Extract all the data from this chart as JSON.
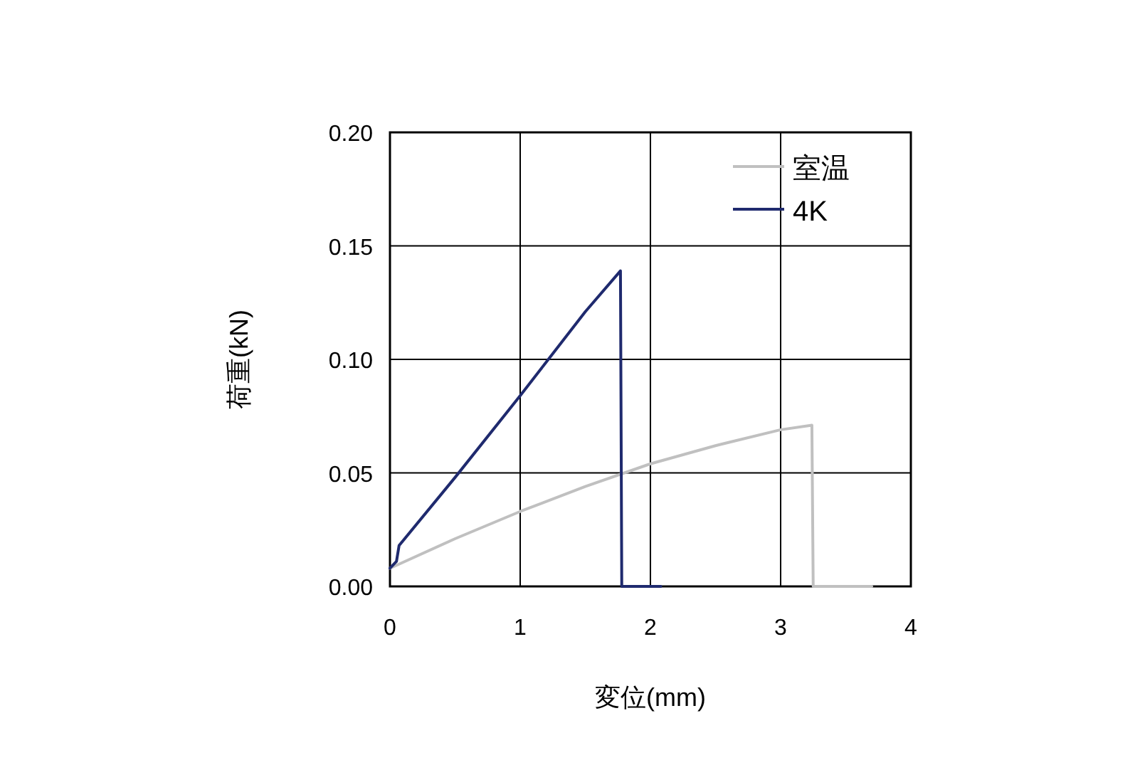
{
  "chart_data": {
    "type": "line",
    "xlabel": "変位(mm)",
    "ylabel": "荷重(kN)",
    "xlim": [
      0,
      4
    ],
    "ylim": [
      0,
      0.2
    ],
    "xticks": [
      0,
      1,
      2,
      3,
      4
    ],
    "yticks": [
      {
        "value": 0,
        "label": "0.00"
      },
      {
        "value": 0.05,
        "label": "0.05"
      },
      {
        "value": 0.1,
        "label": "0.10"
      },
      {
        "value": 0.15,
        "label": "0.15"
      },
      {
        "value": 0.2,
        "label": "0.20"
      }
    ],
    "grid": true,
    "legend": "top right",
    "marker": "none",
    "line_style": "solid",
    "series": [
      {
        "name": "室温",
        "color": "#c0c0c0",
        "x": [
          0,
          0.5,
          1,
          1.5,
          2,
          2.5,
          3,
          3.24,
          3.25,
          3.7
        ],
        "values": [
          0.008,
          0.021,
          0.033,
          0.044,
          0.054,
          0.062,
          0.069,
          0.071,
          0,
          0
        ]
      },
      {
        "name": "4K",
        "color": "#1f2a6e",
        "x": [
          0,
          0.05,
          0.07,
          0.5,
          1,
          1.5,
          1.77,
          1.78,
          2.08
        ],
        "values": [
          0.008,
          0.011,
          0.018,
          0.048,
          0.084,
          0.121,
          0.139,
          0,
          0
        ]
      }
    ]
  }
}
